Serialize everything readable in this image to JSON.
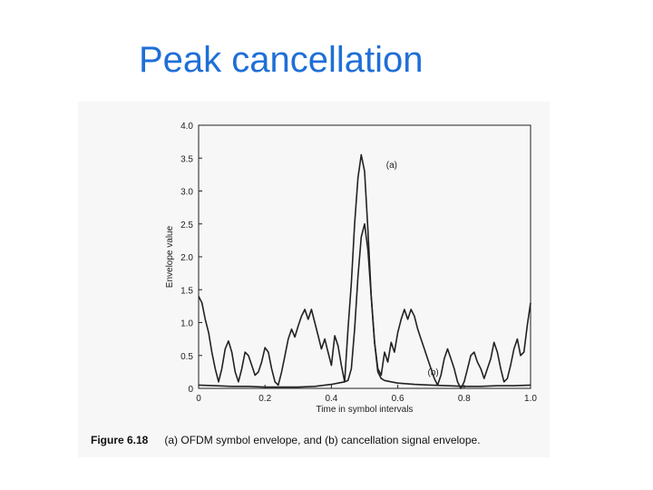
{
  "slide": {
    "title": "Peak cancellation"
  },
  "caption": {
    "number": "Figure 6.18",
    "text": "(a) OFDM symbol envelope, and (b) cancellation signal envelope."
  },
  "chart_data": {
    "type": "line",
    "title": "",
    "xlabel": "Time in symbol intervals",
    "ylabel": "Envelope value",
    "xlim": [
      0,
      1.0
    ],
    "ylim": [
      0,
      4.0
    ],
    "xticks": [
      "0",
      "0.2",
      "0.4",
      "0.6",
      "0.8",
      "1.0"
    ],
    "yticks": [
      "0",
      "0.5",
      "1.0",
      "1.5",
      "2.0",
      "2.5",
      "3.0",
      "3.5",
      "4.0"
    ],
    "grid": false,
    "line_color": "#222222",
    "series": [
      {
        "name": "(a)",
        "x": [
          0,
          0.01,
          0.02,
          0.03,
          0.04,
          0.05,
          0.06,
          0.07,
          0.08,
          0.09,
          0.1,
          0.11,
          0.12,
          0.13,
          0.14,
          0.15,
          0.16,
          0.17,
          0.18,
          0.19,
          0.2,
          0.21,
          0.22,
          0.23,
          0.24,
          0.25,
          0.26,
          0.27,
          0.28,
          0.29,
          0.3,
          0.31,
          0.32,
          0.33,
          0.34,
          0.35,
          0.36,
          0.37,
          0.38,
          0.39,
          0.4,
          0.41,
          0.42,
          0.43,
          0.44,
          0.45,
          0.46,
          0.47,
          0.48,
          0.49,
          0.5,
          0.51,
          0.52,
          0.53,
          0.54,
          0.55,
          0.56,
          0.57,
          0.58,
          0.59,
          0.6,
          0.61,
          0.62,
          0.63,
          0.64,
          0.65,
          0.66,
          0.67,
          0.68,
          0.69,
          0.7,
          0.71,
          0.72,
          0.73,
          0.74,
          0.75,
          0.76,
          0.77,
          0.78,
          0.79,
          0.8,
          0.81,
          0.82,
          0.83,
          0.84,
          0.85,
          0.86,
          0.87,
          0.88,
          0.89,
          0.9,
          0.91,
          0.92,
          0.93,
          0.94,
          0.95,
          0.96,
          0.97,
          0.98,
          0.99,
          1.0
        ],
        "y": [
          1.4,
          1.3,
          1.05,
          0.85,
          0.55,
          0.3,
          0.1,
          0.3,
          0.6,
          0.72,
          0.55,
          0.25,
          0.1,
          0.3,
          0.55,
          0.5,
          0.35,
          0.2,
          0.25,
          0.4,
          0.62,
          0.55,
          0.3,
          0.1,
          0.05,
          0.25,
          0.5,
          0.75,
          0.9,
          0.78,
          0.95,
          1.1,
          1.2,
          1.05,
          1.2,
          1.0,
          0.8,
          0.6,
          0.75,
          0.55,
          0.35,
          0.8,
          0.65,
          0.35,
          0.1,
          0.9,
          1.6,
          2.5,
          3.2,
          3.55,
          3.3,
          2.4,
          1.4,
          0.7,
          0.3,
          0.2,
          0.55,
          0.4,
          0.7,
          0.55,
          0.85,
          1.05,
          1.2,
          1.05,
          1.2,
          1.1,
          0.9,
          0.75,
          0.6,
          0.45,
          0.3,
          0.15,
          0.05,
          0.2,
          0.45,
          0.6,
          0.45,
          0.3,
          0.1,
          0.0,
          0.1,
          0.3,
          0.5,
          0.55,
          0.4,
          0.3,
          0.15,
          0.3,
          0.45,
          0.7,
          0.55,
          0.3,
          0.1,
          0.15,
          0.35,
          0.6,
          0.75,
          0.5,
          0.55,
          0.95,
          1.3
        ]
      },
      {
        "name": "(b)",
        "x": [
          0,
          0.05,
          0.1,
          0.15,
          0.2,
          0.25,
          0.3,
          0.35,
          0.4,
          0.42,
          0.44,
          0.45,
          0.46,
          0.47,
          0.48,
          0.49,
          0.5,
          0.51,
          0.52,
          0.53,
          0.54,
          0.55,
          0.56,
          0.58,
          0.6,
          0.65,
          0.7,
          0.75,
          0.8,
          0.85,
          0.9,
          0.95,
          1.0
        ],
        "y": [
          0.05,
          0.04,
          0.03,
          0.03,
          0.02,
          0.02,
          0.02,
          0.03,
          0.06,
          0.08,
          0.1,
          0.12,
          0.3,
          0.9,
          1.7,
          2.3,
          2.5,
          2.1,
          1.4,
          0.7,
          0.25,
          0.15,
          0.12,
          0.1,
          0.08,
          0.06,
          0.05,
          0.04,
          0.03,
          0.03,
          0.04,
          0.04,
          0.05
        ]
      }
    ],
    "annotations": [
      {
        "text": "(a)",
        "x": 0.565,
        "y": 3.35
      },
      {
        "text": "(b)",
        "x": 0.69,
        "y": 0.2
      }
    ]
  }
}
